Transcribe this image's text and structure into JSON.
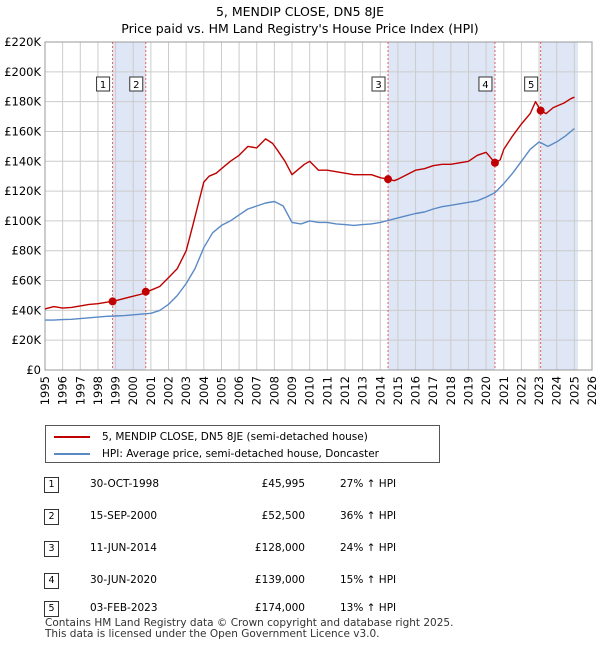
{
  "header": {
    "title": "5, MENDIP CLOSE, DN5 8JE",
    "subtitle": "Price paid vs. HM Land Registry's House Price Index (HPI)"
  },
  "colors": {
    "red": "#c00000",
    "blue": "#5a8ac6",
    "band": "#dfe6f5",
    "grid": "#cccccc"
  },
  "chart_data": {
    "type": "line",
    "title": "5, MENDIP CLOSE, DN5 8JE",
    "subtitle": "Price paid vs. HM Land Registry's House Price Index (HPI)",
    "xlim": [
      1995,
      2026
    ],
    "ylim": [
      0,
      220000
    ],
    "y_ticks": [
      0,
      20000,
      40000,
      60000,
      80000,
      100000,
      120000,
      140000,
      160000,
      180000,
      200000,
      220000
    ],
    "y_tick_labels": [
      "£0",
      "£20K",
      "£40K",
      "£60K",
      "£80K",
      "£100K",
      "£120K",
      "£140K",
      "£160K",
      "£180K",
      "£200K",
      "£220K"
    ],
    "x_ticks": [
      1995,
      1996,
      1997,
      1998,
      1999,
      2000,
      2001,
      2002,
      2003,
      2004,
      2005,
      2006,
      2007,
      2008,
      2009,
      2010,
      2011,
      2012,
      2013,
      2014,
      2015,
      2016,
      2017,
      2018,
      2019,
      2020,
      2021,
      2022,
      2023,
      2024,
      2025,
      2026
    ],
    "x_tick_labels": [
      "1995",
      "1996",
      "1997",
      "1998",
      "1999",
      "2000",
      "2001",
      "2002",
      "2003",
      "2004",
      "2005",
      "2006",
      "2007",
      "2008",
      "2009",
      "2010",
      "2011",
      "2012",
      "2013",
      "2014",
      "2015",
      "2016",
      "2017",
      "2018",
      "2019",
      "2020",
      "2021",
      "2022",
      "2023",
      "2024",
      "2025",
      "2026"
    ],
    "bands": [
      [
        1998.83,
        2000.71
      ],
      [
        2014.44,
        2020.5
      ],
      [
        2023.09,
        2025.2
      ]
    ],
    "series": [
      {
        "name": "5, MENDIP CLOSE, DN5 8JE (semi-detached house)",
        "color": "#c00000",
        "x": [
          1995,
          1995.5,
          1996,
          1996.5,
          1997,
          1997.5,
          1998,
          1998.5,
          1998.83,
          1999,
          1999.5,
          2000,
          2000.5,
          2000.71,
          2001,
          2001.5,
          2002,
          2002.5,
          2003,
          2003.4,
          2003.7,
          2004,
          2004.3,
          2004.7,
          2005,
          2005.5,
          2006,
          2006.5,
          2007,
          2007.5,
          2007.9,
          2008.2,
          2008.6,
          2009,
          2009.3,
          2009.7,
          2010,
          2010.5,
          2011,
          2011.5,
          2012,
          2012.5,
          2013,
          2013.5,
          2014,
          2014.44,
          2014.8,
          2015,
          2015.5,
          2016,
          2016.5,
          2017,
          2017.5,
          2018,
          2018.5,
          2019,
          2019.5,
          2020,
          2020.5,
          2020.8,
          2021,
          2021.5,
          2022,
          2022.5,
          2022.8,
          2023.09,
          2023.4,
          2023.8,
          2024,
          2024.4,
          2024.8,
          2025
        ],
        "values": [
          41000,
          42500,
          41500,
          42000,
          43000,
          44000,
          44500,
          45500,
          45995,
          46500,
          48000,
          49500,
          51000,
          52500,
          53500,
          56000,
          62000,
          68000,
          80000,
          98000,
          112000,
          126000,
          130000,
          132000,
          135000,
          140000,
          144000,
          150000,
          149000,
          155000,
          152000,
          147000,
          140000,
          131000,
          134000,
          138000,
          140000,
          134000,
          134000,
          133000,
          132000,
          131000,
          131000,
          131000,
          129000,
          128000,
          127000,
          128000,
          131000,
          134000,
          135000,
          137000,
          138000,
          138000,
          139000,
          140000,
          144000,
          146000,
          139000,
          141000,
          148000,
          157000,
          165000,
          172000,
          180000,
          174000,
          172000,
          176000,
          177000,
          179000,
          182000,
          183000
        ]
      },
      {
        "name": "HPI: Average price, semi-detached house, Doncaster",
        "color": "#5a8ac6",
        "x": [
          1995,
          1995.5,
          1996,
          1996.5,
          1997,
          1997.5,
          1998,
          1998.5,
          1999,
          1999.5,
          2000,
          2000.5,
          2001,
          2001.5,
          2002,
          2002.5,
          2003,
          2003.5,
          2004,
          2004.5,
          2005,
          2005.5,
          2006,
          2006.5,
          2007,
          2007.5,
          2008,
          2008.5,
          2009,
          2009.5,
          2010,
          2010.5,
          2011,
          2011.5,
          2012,
          2012.5,
          2013,
          2013.5,
          2014,
          2014.5,
          2015,
          2015.5,
          2016,
          2016.5,
          2017,
          2017.5,
          2018,
          2018.5,
          2019,
          2019.5,
          2020,
          2020.5,
          2021,
          2021.5,
          2022,
          2022.5,
          2023,
          2023.5,
          2024,
          2024.5,
          2025
        ],
        "values": [
          33500,
          33500,
          33800,
          34000,
          34500,
          35000,
          35500,
          36000,
          36200,
          36500,
          37000,
          37500,
          38000,
          40000,
          44000,
          50000,
          58000,
          68000,
          82000,
          92000,
          97000,
          100000,
          104000,
          108000,
          110000,
          112000,
          113000,
          110000,
          99000,
          98000,
          100000,
          99000,
          99000,
          98000,
          97500,
          97000,
          97500,
          98000,
          99000,
          100500,
          102000,
          103500,
          105000,
          106000,
          108000,
          109500,
          110500,
          111500,
          112500,
          113500,
          116000,
          119000,
          125000,
          132000,
          140000,
          148000,
          153000,
          150000,
          153000,
          157000,
          162000
        ]
      }
    ],
    "sales": [
      {
        "label": "1",
        "x": 1998.83,
        "y": 45995
      },
      {
        "label": "2",
        "x": 2000.71,
        "y": 52500
      },
      {
        "label": "3",
        "x": 2014.44,
        "y": 128000
      },
      {
        "label": "4",
        "x": 2020.5,
        "y": 139000
      },
      {
        "label": "5",
        "x": 2023.09,
        "y": 174000
      }
    ]
  },
  "legend": {
    "series1": "5, MENDIP CLOSE, DN5 8JE (semi-detached house)",
    "series2": "HPI: Average price, semi-detached house, Doncaster"
  },
  "sales_table": [
    {
      "num": "1",
      "date": "30-OCT-1998",
      "price": "£45,995",
      "hpi": "27% ↑ HPI"
    },
    {
      "num": "2",
      "date": "15-SEP-2000",
      "price": "£52,500",
      "hpi": "36% ↑ HPI"
    },
    {
      "num": "3",
      "date": "11-JUN-2014",
      "price": "£128,000",
      "hpi": "24% ↑ HPI"
    },
    {
      "num": "4",
      "date": "30-JUN-2020",
      "price": "£139,000",
      "hpi": "15% ↑ HPI"
    },
    {
      "num": "5",
      "date": "03-FEB-2023",
      "price": "£174,000",
      "hpi": "13% ↑ HPI"
    }
  ],
  "footer": {
    "line1": "Contains HM Land Registry data © Crown copyright and database right 2025.",
    "line2": "This data is licensed under the Open Government Licence v3.0."
  }
}
